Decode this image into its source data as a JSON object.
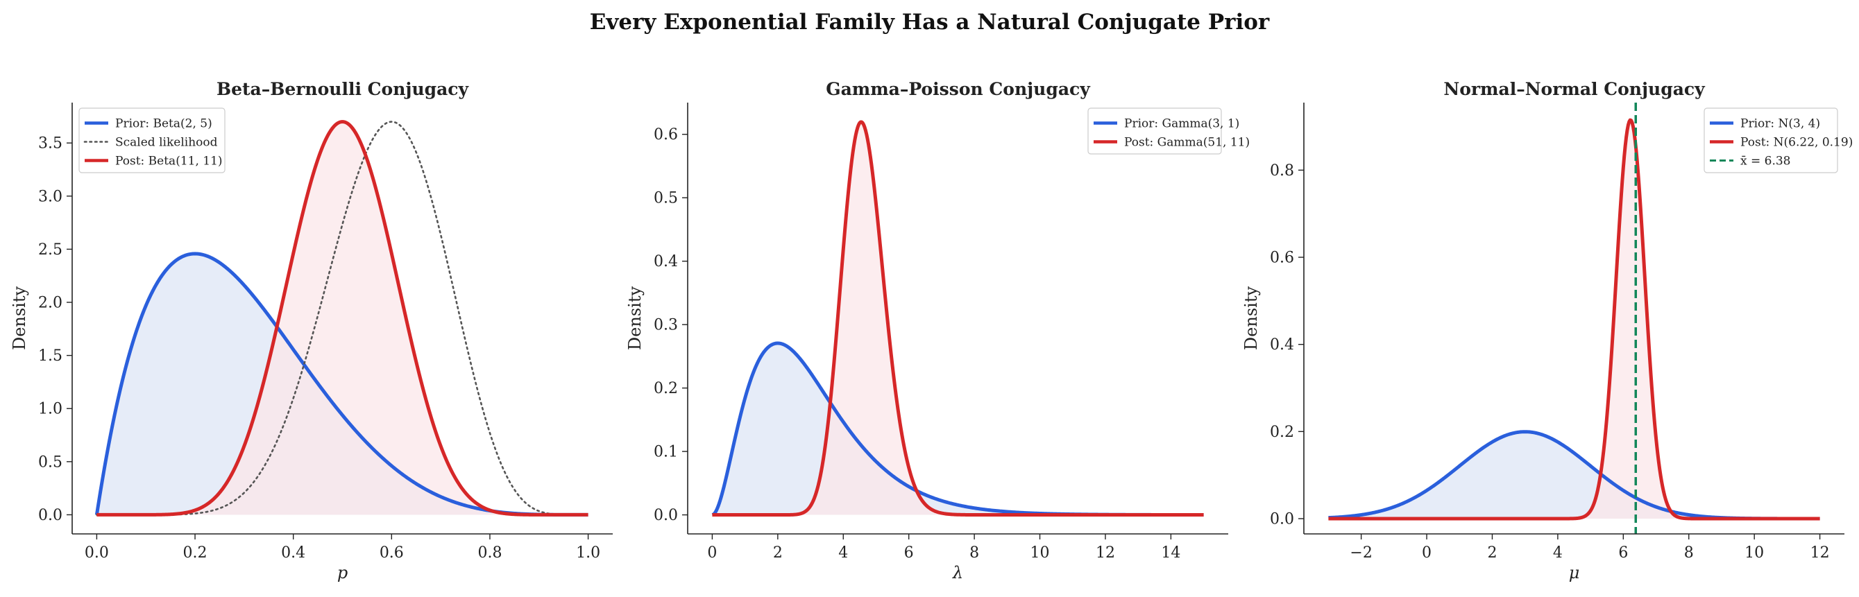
{
  "suptitle": "Every Exponential Family Has a Natural Conjugate Prior",
  "colors": {
    "prior": "#2a5fdc",
    "posterior": "#d62728",
    "likelihood": "#555555",
    "sample_mean": "#13875a",
    "prior_fill": "#e6ecf8",
    "posterior_fill": "#fbe7e9"
  },
  "chart_data": [
    {
      "type": "line",
      "title": "Beta–Bernoulli Conjugacy",
      "xlabel": "p",
      "ylabel": "Density",
      "xlim": [
        -0.05,
        1.05
      ],
      "ylim": [
        -0.18,
        3.88
      ],
      "xticks": [
        0.0,
        0.2,
        0.4,
        0.6,
        0.8,
        1.0
      ],
      "xtick_labels": [
        "0.0",
        "0.2",
        "0.4",
        "0.6",
        "0.8",
        "1.0"
      ],
      "yticks": [
        0.0,
        0.5,
        1.0,
        1.5,
        2.0,
        2.5,
        3.0,
        3.5
      ],
      "ytick_labels": [
        "0.0",
        "0.5",
        "1.0",
        "1.5",
        "2.0",
        "2.5",
        "3.0",
        "3.5"
      ],
      "grid": false,
      "legend_position": "top-left",
      "series": [
        {
          "name": "Prior: Beta(2, 5)",
          "role": "prior",
          "dist": "beta",
          "params": [
            2,
            5
          ],
          "x_range": [
            0,
            1
          ],
          "fill": true
        },
        {
          "name": "Scaled likelihood",
          "role": "likelihood",
          "dist": "beta_scaled",
          "params": [
            10,
            7
          ],
          "peak": 3.7,
          "x_range": [
            0,
            1
          ],
          "fill": false,
          "dashed": "dotted"
        },
        {
          "name": "Post: Beta(11, 11)",
          "role": "posterior",
          "dist": "beta",
          "params": [
            11,
            11
          ],
          "x_range": [
            0,
            1
          ],
          "fill": true
        }
      ]
    },
    {
      "type": "line",
      "title": "Gamma–Poisson Conjugacy",
      "xlabel": "λ",
      "ylabel": "Density",
      "xlim": [
        -0.75,
        15.75
      ],
      "ylim": [
        -0.03,
        0.65
      ],
      "xticks": [
        0,
        2,
        4,
        6,
        8,
        10,
        12,
        14
      ],
      "xtick_labels": [
        "0",
        "2",
        "4",
        "6",
        "8",
        "10",
        "12",
        "14"
      ],
      "yticks": [
        0.0,
        0.1,
        0.2,
        0.3,
        0.4,
        0.5,
        0.6
      ],
      "ytick_labels": [
        "0.0",
        "0.1",
        "0.2",
        "0.3",
        "0.4",
        "0.5",
        "0.6"
      ],
      "grid": false,
      "legend_position": "top-right",
      "series": [
        {
          "name": "Prior: Gamma(3, 1)",
          "role": "prior",
          "dist": "gamma",
          "params": [
            3,
            1
          ],
          "x_range": [
            0,
            15
          ],
          "fill": true
        },
        {
          "name": "Post: Gamma(51, 11)",
          "role": "posterior",
          "dist": "gamma",
          "params": [
            51,
            11
          ],
          "x_range": [
            0,
            15
          ],
          "fill": true
        }
      ]
    },
    {
      "type": "line",
      "title": "Normal–Normal Conjugacy",
      "xlabel": "μ",
      "ylabel": "Density",
      "xlim": [
        -3.75,
        12.75
      ],
      "ylim": [
        -0.035,
        0.955
      ],
      "xticks": [
        -2,
        0,
        2,
        4,
        6,
        8,
        10,
        12
      ],
      "xtick_labels": [
        "−2",
        "0",
        "2",
        "4",
        "6",
        "8",
        "10",
        "12"
      ],
      "yticks": [
        0.0,
        0.2,
        0.4,
        0.6,
        0.8
      ],
      "ytick_labels": [
        "0.0",
        "0.2",
        "0.4",
        "0.6",
        "0.8"
      ],
      "grid": false,
      "legend_position": "top-right",
      "series": [
        {
          "name": "Prior: N(3, 4)",
          "role": "prior",
          "dist": "normal",
          "params": [
            3,
            4
          ],
          "x_range": [
            -3,
            12
          ],
          "fill": true
        },
        {
          "name": "Post: N(6.22, 0.19)",
          "role": "posterior",
          "dist": "normal",
          "params": [
            6.22,
            0.19
          ],
          "x_range": [
            -3,
            12
          ],
          "fill": true
        },
        {
          "name": "x̄ = 6.38",
          "role": "sample_mean",
          "dist": "vline",
          "value": 6.38,
          "dashed": "dashed"
        }
      ]
    }
  ]
}
